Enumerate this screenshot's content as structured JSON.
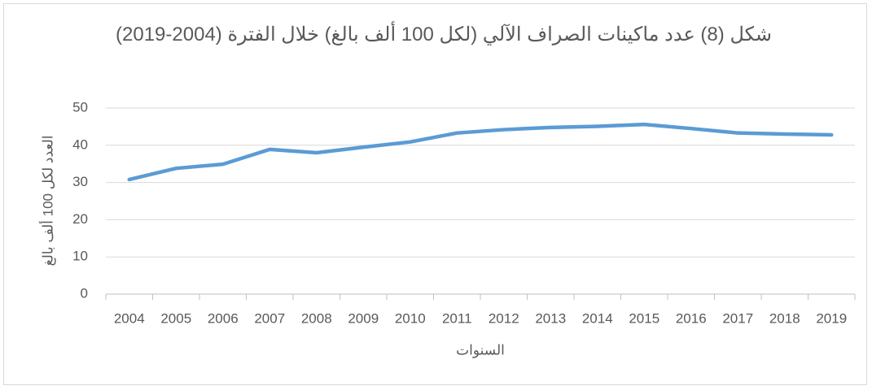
{
  "chart_data": {
    "type": "line",
    "title": "شكل (8) عدد ماكينات الصراف الآلي (لكل 100 ألف بالغ) خلال الفترة (2004-2019)",
    "x_label": "السنوات",
    "y_label": "العدد لكل 100 ألف بالغ",
    "categories": [
      "2004",
      "2005",
      "2006",
      "2007",
      "2008",
      "2009",
      "2010",
      "2011",
      "2012",
      "2013",
      "2014",
      "2015",
      "2016",
      "2017",
      "2018",
      "2019"
    ],
    "values": [
      30.8,
      33.8,
      34.9,
      38.9,
      38.0,
      39.5,
      40.9,
      43.3,
      44.2,
      44.8,
      45.1,
      45.6,
      44.5,
      43.3,
      43.0,
      42.8
    ],
    "color": "#5b9bd5",
    "ylim": [
      0,
      50
    ],
    "yticks": [
      0,
      10,
      20,
      30,
      40,
      50
    ],
    "grid": true
  }
}
